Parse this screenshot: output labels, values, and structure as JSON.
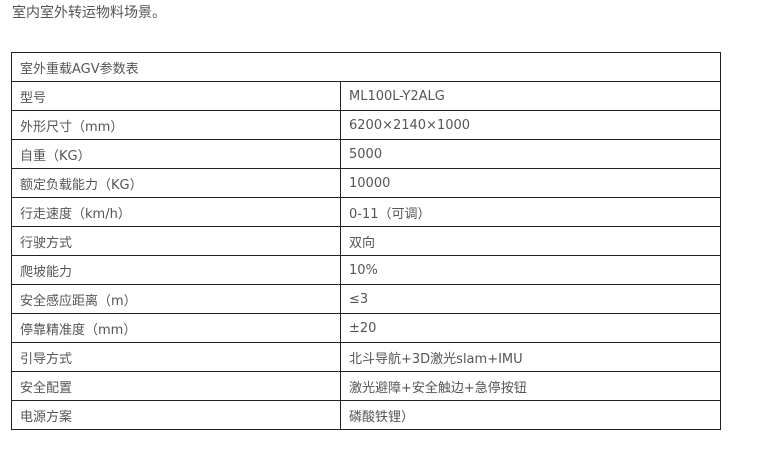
{
  "intro": "室内室外转运物料场景。",
  "table": {
    "title": "室外重载AGV参数表",
    "rows": [
      {
        "k": "型号",
        "v": "ML100L-Y2ALG"
      },
      {
        "k": "外形尺寸（mm）",
        "v": "6200×2140×1000"
      },
      {
        "k": "自重（KG）",
        "v": "5000"
      },
      {
        "k": "额定负载能力（KG）",
        "v": "10000"
      },
      {
        "k": "行走速度（km/h）",
        "v": "0-11（可调）"
      },
      {
        "k": "行驶方式",
        "v": "双向"
      },
      {
        "k": "爬坡能力",
        "v": "10%"
      },
      {
        "k": "安全感应距离（m）",
        "v": "≤3"
      },
      {
        "k": "停靠精准度（mm）",
        "v": "±20"
      },
      {
        "k": "引导方式",
        "v": "北斗导航+3D激光slam+IMU"
      },
      {
        "k": "安全配置",
        "v": "激光避障+安全触边+急停按钮"
      },
      {
        "k": "电源方案",
        "v": "磷酸铁锂）"
      }
    ]
  }
}
